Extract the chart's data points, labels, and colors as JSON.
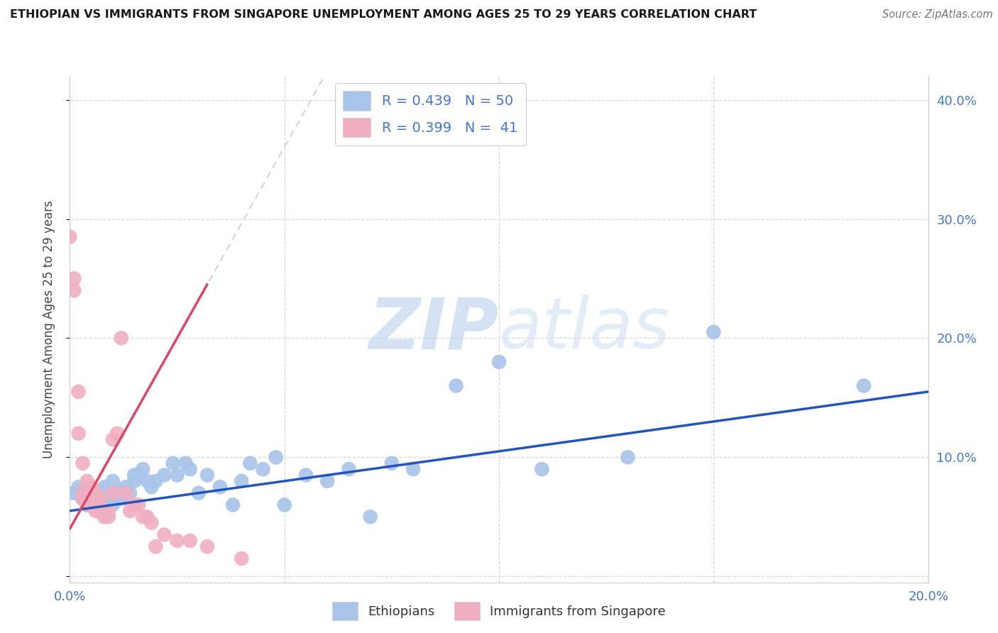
{
  "title": "ETHIOPIAN VS IMMIGRANTS FROM SINGAPORE UNEMPLOYMENT AMONG AGES 25 TO 29 YEARS CORRELATION CHART",
  "source": "Source: ZipAtlas.com",
  "ylabel": "Unemployment Among Ages 25 to 29 years",
  "xlim": [
    0.0,
    0.2
  ],
  "ylim": [
    -0.005,
    0.42
  ],
  "bg_color": "#ffffff",
  "grid_color": "#d8d8d8",
  "watermark_zip": "ZIP",
  "watermark_atlas": "atlas",
  "ethiopian_color": "#a8c4e8",
  "singapore_color": "#f0afc0",
  "ethiopian_line_color": "#2255bb",
  "singapore_line_color": "#dd4466",
  "legend_R_ethiopian": "0.439",
  "legend_N_ethiopian": "50",
  "legend_R_singapore": "0.399",
  "legend_N_singapore": "41",
  "ethiopian_x": [
    0.001,
    0.002,
    0.003,
    0.004,
    0.005,
    0.005,
    0.006,
    0.007,
    0.007,
    0.008,
    0.009,
    0.01,
    0.01,
    0.011,
    0.012,
    0.013,
    0.014,
    0.015,
    0.015,
    0.016,
    0.017,
    0.018,
    0.019,
    0.02,
    0.022,
    0.024,
    0.025,
    0.027,
    0.028,
    0.03,
    0.032,
    0.035,
    0.038,
    0.04,
    0.042,
    0.045,
    0.048,
    0.05,
    0.055,
    0.06,
    0.065,
    0.07,
    0.075,
    0.08,
    0.09,
    0.1,
    0.11,
    0.13,
    0.15,
    0.185
  ],
  "ethiopian_y": [
    0.07,
    0.075,
    0.065,
    0.06,
    0.06,
    0.07,
    0.065,
    0.07,
    0.06,
    0.075,
    0.065,
    0.06,
    0.08,
    0.07,
    0.065,
    0.075,
    0.07,
    0.08,
    0.085,
    0.085,
    0.09,
    0.08,
    0.075,
    0.08,
    0.085,
    0.095,
    0.085,
    0.095,
    0.09,
    0.07,
    0.085,
    0.075,
    0.06,
    0.08,
    0.095,
    0.09,
    0.1,
    0.06,
    0.085,
    0.08,
    0.09,
    0.05,
    0.095,
    0.09,
    0.16,
    0.18,
    0.09,
    0.1,
    0.205,
    0.16
  ],
  "singapore_x": [
    0.0,
    0.001,
    0.001,
    0.002,
    0.002,
    0.003,
    0.003,
    0.003,
    0.004,
    0.004,
    0.004,
    0.005,
    0.005,
    0.005,
    0.006,
    0.006,
    0.006,
    0.007,
    0.007,
    0.007,
    0.008,
    0.008,
    0.009,
    0.009,
    0.01,
    0.01,
    0.011,
    0.012,
    0.013,
    0.014,
    0.015,
    0.016,
    0.017,
    0.018,
    0.019,
    0.02,
    0.022,
    0.025,
    0.028,
    0.032,
    0.04
  ],
  "singapore_y": [
    0.285,
    0.25,
    0.24,
    0.155,
    0.12,
    0.095,
    0.07,
    0.065,
    0.08,
    0.07,
    0.06,
    0.075,
    0.065,
    0.06,
    0.07,
    0.065,
    0.055,
    0.065,
    0.06,
    0.055,
    0.055,
    0.05,
    0.055,
    0.05,
    0.115,
    0.07,
    0.12,
    0.2,
    0.07,
    0.055,
    0.06,
    0.06,
    0.05,
    0.05,
    0.045,
    0.025,
    0.035,
    0.03,
    0.03,
    0.025,
    0.015
  ],
  "eth_trend_x": [
    0.0,
    0.2
  ],
  "eth_trend_y": [
    0.055,
    0.155
  ],
  "sing_trend_x": [
    0.0,
    0.032
  ],
  "sing_trend_y": [
    0.04,
    0.245
  ]
}
